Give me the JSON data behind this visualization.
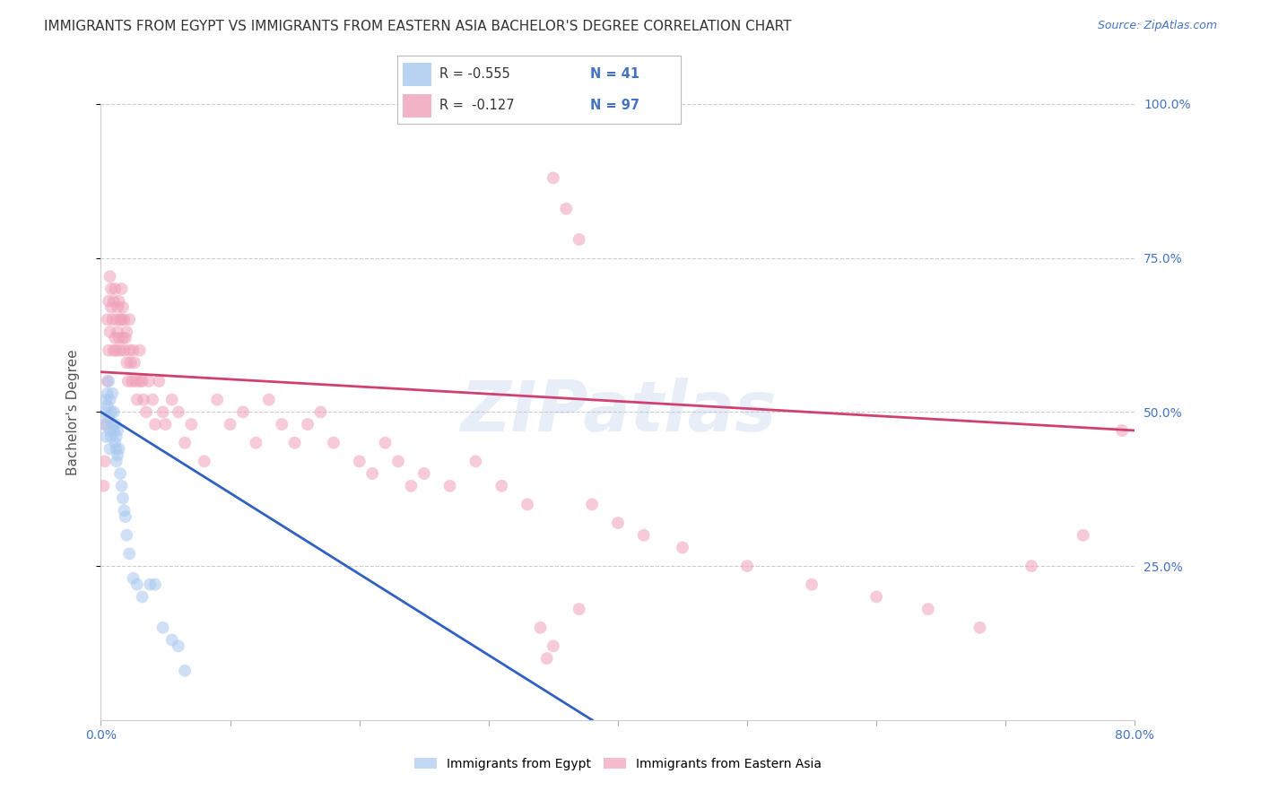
{
  "title": "IMMIGRANTS FROM EGYPT VS IMMIGRANTS FROM EASTERN ASIA BACHELOR'S DEGREE CORRELATION CHART",
  "source": "Source: ZipAtlas.com",
  "ylabel": "Bachelor's Degree",
  "xlim": [
    0.0,
    0.8
  ],
  "ylim": [
    0.0,
    1.0
  ],
  "xticks": [
    0.0,
    0.1,
    0.2,
    0.3,
    0.4,
    0.5,
    0.6,
    0.7,
    0.8
  ],
  "xticklabels": [
    "0.0%",
    "",
    "",
    "",
    "",
    "",
    "",
    "",
    "80.0%"
  ],
  "ytick_labels_right": [
    "100.0%",
    "75.0%",
    "50.0%",
    "25.0%"
  ],
  "ytick_positions_right": [
    1.0,
    0.75,
    0.5,
    0.25
  ],
  "grid_color": "#cccccc",
  "background_color": "#ffffff",
  "title_color": "#333333",
  "axis_color": "#4472c4",
  "watermark": "ZIPatlas",
  "legend_R1": "R = -0.555",
  "legend_N1": "N = 41",
  "legend_R2": "R =  -0.127",
  "legend_N2": "N = 97",
  "egypt_color": "#a8c8f0",
  "eastern_asia_color": "#f0a0b8",
  "egypt_line_color": "#3060c0",
  "eastern_asia_line_color": "#d04070",
  "egypt_scatter": {
    "x": [
      0.002,
      0.003,
      0.004,
      0.004,
      0.005,
      0.005,
      0.006,
      0.006,
      0.007,
      0.007,
      0.007,
      0.008,
      0.008,
      0.009,
      0.009,
      0.01,
      0.01,
      0.011,
      0.011,
      0.012,
      0.012,
      0.012,
      0.013,
      0.013,
      0.014,
      0.015,
      0.016,
      0.017,
      0.018,
      0.019,
      0.02,
      0.022,
      0.025,
      0.028,
      0.032,
      0.038,
      0.042,
      0.048,
      0.055,
      0.06,
      0.065
    ],
    "y": [
      0.48,
      0.5,
      0.52,
      0.46,
      0.51,
      0.53,
      0.55,
      0.49,
      0.52,
      0.47,
      0.44,
      0.5,
      0.46,
      0.53,
      0.48,
      0.5,
      0.47,
      0.48,
      0.45,
      0.46,
      0.44,
      0.42,
      0.43,
      0.47,
      0.44,
      0.4,
      0.38,
      0.36,
      0.34,
      0.33,
      0.3,
      0.27,
      0.23,
      0.22,
      0.2,
      0.22,
      0.22,
      0.15,
      0.13,
      0.12,
      0.08
    ]
  },
  "eastern_asia_scatter": {
    "x": [
      0.002,
      0.003,
      0.004,
      0.005,
      0.005,
      0.006,
      0.006,
      0.007,
      0.007,
      0.008,
      0.008,
      0.009,
      0.01,
      0.01,
      0.011,
      0.011,
      0.012,
      0.012,
      0.013,
      0.013,
      0.014,
      0.014,
      0.015,
      0.015,
      0.016,
      0.016,
      0.017,
      0.017,
      0.018,
      0.018,
      0.019,
      0.02,
      0.02,
      0.021,
      0.022,
      0.022,
      0.023,
      0.024,
      0.025,
      0.026,
      0.027,
      0.028,
      0.03,
      0.03,
      0.032,
      0.033,
      0.035,
      0.037,
      0.04,
      0.042,
      0.045,
      0.048,
      0.05,
      0.055,
      0.06,
      0.065,
      0.07,
      0.08,
      0.09,
      0.1,
      0.11,
      0.12,
      0.13,
      0.14,
      0.15,
      0.16,
      0.17,
      0.18,
      0.2,
      0.21,
      0.22,
      0.23,
      0.24,
      0.25,
      0.27,
      0.29,
      0.31,
      0.33,
      0.35,
      0.37,
      0.35,
      0.36,
      0.37,
      0.38,
      0.4,
      0.42,
      0.45,
      0.5,
      0.55,
      0.6,
      0.64,
      0.68,
      0.72,
      0.76,
      0.79,
      0.34,
      0.345
    ],
    "y": [
      0.38,
      0.42,
      0.48,
      0.55,
      0.65,
      0.6,
      0.68,
      0.63,
      0.72,
      0.67,
      0.7,
      0.65,
      0.6,
      0.68,
      0.62,
      0.7,
      0.65,
      0.6,
      0.63,
      0.67,
      0.62,
      0.68,
      0.6,
      0.65,
      0.7,
      0.65,
      0.62,
      0.67,
      0.6,
      0.65,
      0.62,
      0.58,
      0.63,
      0.55,
      0.6,
      0.65,
      0.58,
      0.55,
      0.6,
      0.58,
      0.55,
      0.52,
      0.55,
      0.6,
      0.55,
      0.52,
      0.5,
      0.55,
      0.52,
      0.48,
      0.55,
      0.5,
      0.48,
      0.52,
      0.5,
      0.45,
      0.48,
      0.42,
      0.52,
      0.48,
      0.5,
      0.45,
      0.52,
      0.48,
      0.45,
      0.48,
      0.5,
      0.45,
      0.42,
      0.4,
      0.45,
      0.42,
      0.38,
      0.4,
      0.38,
      0.42,
      0.38,
      0.35,
      0.12,
      0.18,
      0.88,
      0.83,
      0.78,
      0.35,
      0.32,
      0.3,
      0.28,
      0.25,
      0.22,
      0.2,
      0.18,
      0.15,
      0.25,
      0.3,
      0.47,
      0.15,
      0.1
    ]
  },
  "egypt_trendline": {
    "x_start": 0.0,
    "y_start": 0.5,
    "x_end": 0.38,
    "y_end": 0.0
  },
  "eastern_asia_trendline": {
    "x_start": 0.0,
    "y_start": 0.565,
    "x_end": 0.8,
    "y_end": 0.47
  },
  "marker_size": 100,
  "marker_alpha": 0.55,
  "title_fontsize": 11,
  "axis_label_fontsize": 11,
  "tick_fontsize": 10,
  "legend_fontsize": 11
}
